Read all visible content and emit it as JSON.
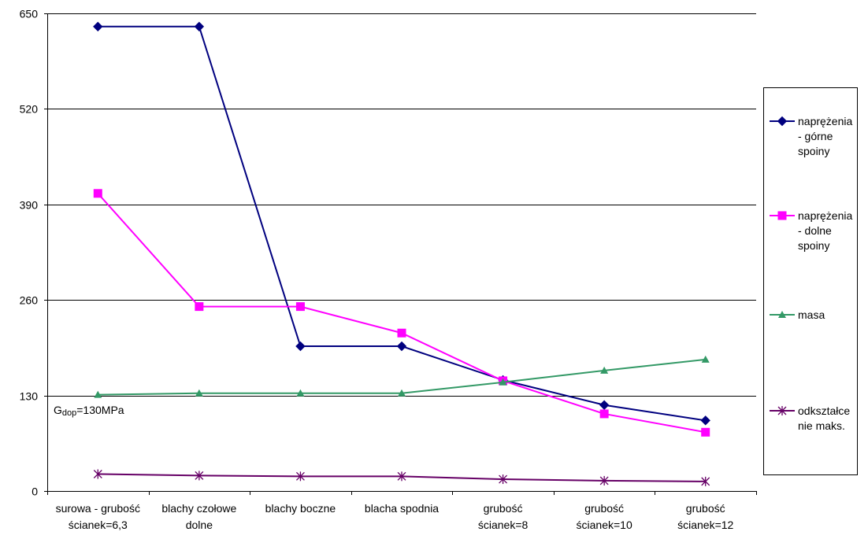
{
  "chart_data": {
    "type": "line",
    "categories": [
      [
        "surowa - grubość",
        "ścianek=6,3"
      ],
      [
        "blachy czołowe",
        "dolne"
      ],
      [
        "blachy boczne"
      ],
      [
        "blacha spodnia"
      ],
      [
        "grubość",
        "ścianek=8"
      ],
      [
        "grubość",
        "ścianek=10"
      ],
      [
        "grubość",
        "ścianek=12"
      ]
    ],
    "series": [
      {
        "name": [
          "naprężenia",
          "- górne",
          "spoiny"
        ],
        "color": "#00007F",
        "marker": "diamond",
        "values": [
          632,
          632,
          197,
          197,
          151,
          117,
          96
        ]
      },
      {
        "name": [
          "naprężenia",
          "- dolne",
          "spoiny"
        ],
        "color": "#FF00FF",
        "marker": "square",
        "values": [
          405,
          251,
          251,
          215,
          150,
          105,
          80
        ]
      },
      {
        "name": [
          "masa"
        ],
        "color": "#339966",
        "marker": "triangle",
        "values": [
          131,
          133,
          133,
          133,
          148,
          164,
          179
        ]
      },
      {
        "name": [
          "odkształce",
          "nie maks."
        ],
        "color": "#660066",
        "marker": "star",
        "values": [
          23,
          21,
          20,
          20,
          16,
          14,
          13
        ]
      }
    ],
    "ylim": [
      0,
      650
    ],
    "yticks": [
      0,
      130,
      260,
      390,
      520,
      650
    ],
    "grid": true,
    "legend_position": "right",
    "annotation": {
      "prefix": "G",
      "sub": "dop",
      "suffix": "=130MPa"
    }
  }
}
